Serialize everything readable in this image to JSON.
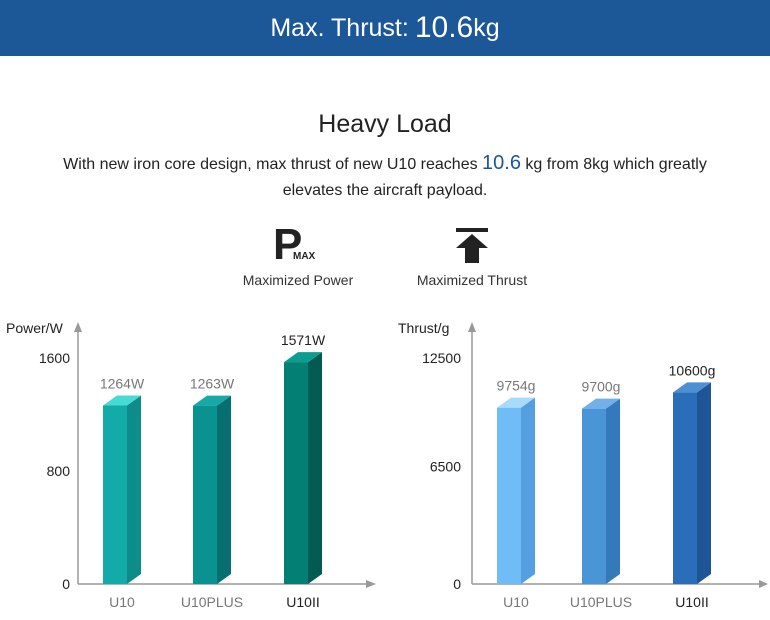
{
  "banner": {
    "label": "Max. Thrust:",
    "value": "10.6",
    "unit": "kg"
  },
  "heading": "Heavy Load",
  "description": {
    "before": "With new iron core design, max thrust of new U10 reaches ",
    "highlight": "10.6",
    "after": " kg from 8kg which greatly elevates the aircraft payload."
  },
  "features": [
    {
      "icon": "p-max-icon",
      "main": "P",
      "sub": "MAX",
      "label": "Maximized Power"
    },
    {
      "icon": "up-arrow-bar-icon",
      "label": "Maximized Thrust"
    }
  ],
  "chart_data": [
    {
      "type": "bar",
      "ylabel": "Power/W",
      "yticks": [
        0,
        800,
        1600
      ],
      "ylim": [
        0,
        1600
      ],
      "categories": [
        "U10",
        "U10PLUS",
        "U10II"
      ],
      "values": [
        1264,
        1263,
        1571
      ],
      "data_labels": [
        "1264W",
        "1263W",
        "1571W"
      ],
      "colors": {
        "front": [
          "#13aaa7",
          "#0a9290",
          "#037f74"
        ],
        "side": [
          "#0e8c89",
          "#07706e",
          "#025b53"
        ],
        "top": [
          "#46d9d6",
          "#16a9a6",
          "#0b9e90"
        ]
      }
    },
    {
      "type": "bar",
      "ylabel": "Thrust/g",
      "yticks": [
        0,
        6500,
        12500
      ],
      "ylim": [
        0,
        12500
      ],
      "categories": [
        "U10",
        "U10PLUS",
        "U10II"
      ],
      "values": [
        9754,
        9700,
        10600
      ],
      "data_labels": [
        "9754g",
        "9700g",
        "10600g"
      ],
      "colors": {
        "front": [
          "#6fbcf7",
          "#4a95d6",
          "#2a6db8"
        ],
        "side": [
          "#559fe0",
          "#3479ba",
          "#1d5596"
        ],
        "top": [
          "#a9d9fb",
          "#72b1e8",
          "#4e8fd3"
        ]
      }
    }
  ]
}
